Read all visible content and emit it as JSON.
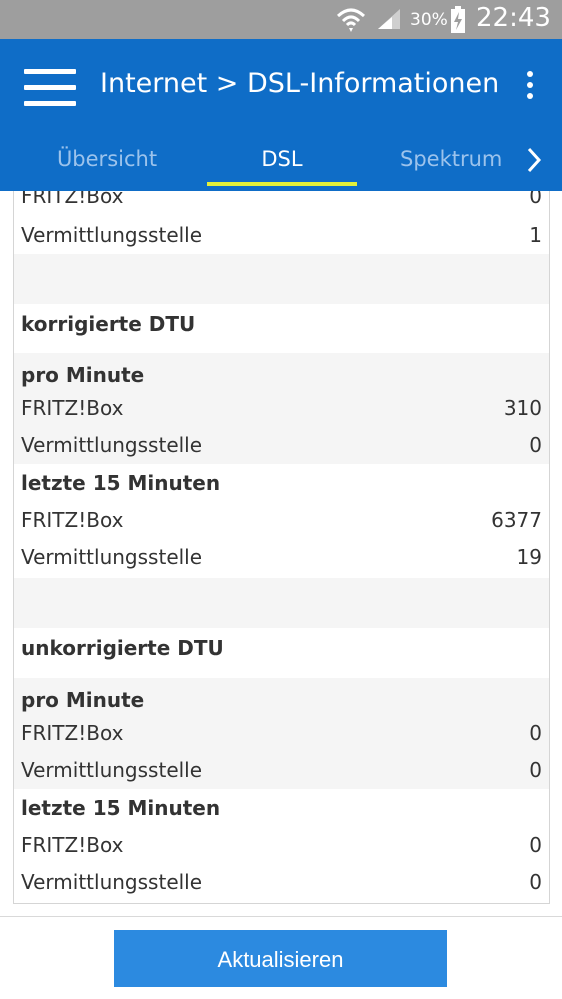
{
  "status_bar": {
    "battery_percent": "30%",
    "time": "22:43",
    "icons": [
      "wifi-icon",
      "signal-icon",
      "battery-charging-icon"
    ]
  },
  "app_bar": {
    "title": "Internet > DSL-Informationen",
    "icons": [
      "menu-icon",
      "more-vert-icon"
    ]
  },
  "tabs": [
    {
      "label": "Übersicht",
      "active": false
    },
    {
      "label": "DSL",
      "active": true
    },
    {
      "label": "Spektrum",
      "active": false
    }
  ],
  "colors": {
    "app_bar": "#0f6dc7",
    "tab_indicator": "#e3f03a",
    "button": "#2c8ae0",
    "status_bar": "#9e9e9e"
  },
  "rows": [
    {
      "label": "FRITZ!Box",
      "value": "0"
    },
    {
      "label": "Vermittlungsstelle",
      "value": "1"
    },
    {
      "label": "korrigierte DTU",
      "value": ""
    },
    {
      "label": "pro Minute",
      "value": ""
    },
    {
      "label": "FRITZ!Box",
      "value": "310"
    },
    {
      "label": "Vermittlungsstelle",
      "value": "0"
    },
    {
      "label": "letzte 15 Minuten",
      "value": ""
    },
    {
      "label": "FRITZ!Box",
      "value": "6377"
    },
    {
      "label": "Vermittlungsstelle",
      "value": "19"
    },
    {
      "label": "unkorrigierte DTU",
      "value": ""
    },
    {
      "label": "pro Minute",
      "value": ""
    },
    {
      "label": "FRITZ!Box",
      "value": "0"
    },
    {
      "label": "Vermittlungsstelle",
      "value": "0"
    },
    {
      "label": "letzte 15 Minuten",
      "value": ""
    },
    {
      "label": "FRITZ!Box",
      "value": "0"
    },
    {
      "label": "Vermittlungsstelle",
      "value": "0"
    }
  ],
  "refresh_button": {
    "label": "Aktualisieren"
  }
}
